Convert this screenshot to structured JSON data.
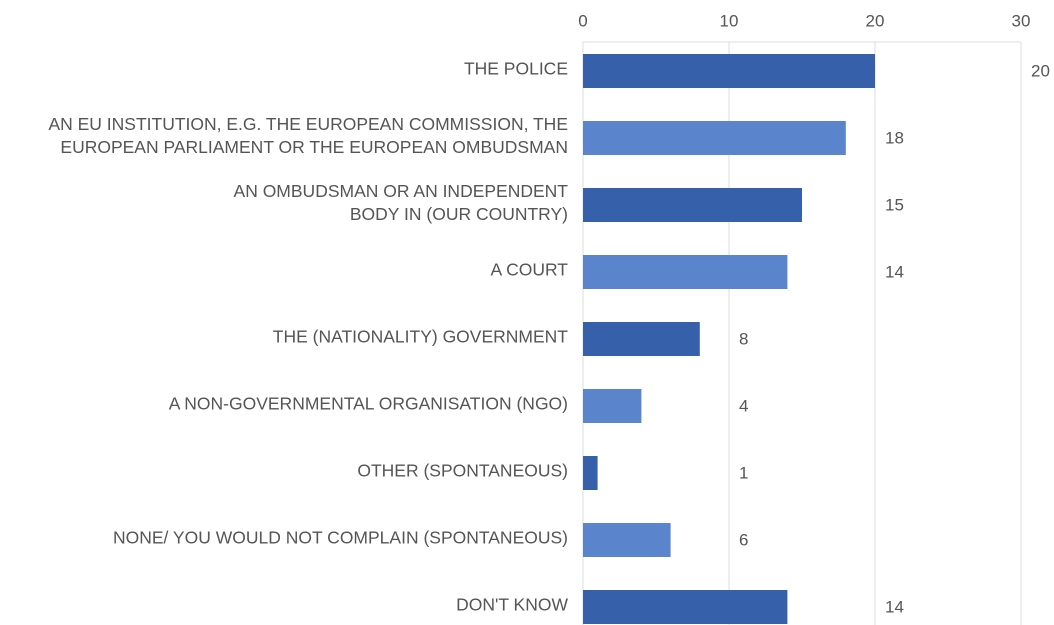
{
  "chart_data": {
    "type": "bar",
    "orientation": "horizontal",
    "categories": [
      "THE POLICE",
      "AN EU INSTITUTION, E.G. THE EUROPEAN COMMISSION, THE\nEUROPEAN PARLIAMENT OR THE EUROPEAN OMBUDSMAN",
      "AN OMBUDSMAN OR AN INDEPENDENT\nBODY IN (OUR COUNTRY)",
      "A COURT",
      "THE (NATIONALITY) GOVERNMENT",
      "A NON-GOVERNMENTAL ORGANISATION (NGO)",
      "OTHER (SPONTANEOUS)",
      "NONE/ YOU WOULD NOT COMPLAIN (SPONTANEOUS)",
      "DON'T KNOW"
    ],
    "values": [
      20,
      18,
      15,
      14,
      8,
      4,
      1,
      6,
      14
    ],
    "colors": [
      "#3760aa",
      "#5a84cc",
      "#3760aa",
      "#5a84cc",
      "#3760aa",
      "#5a84cc",
      "#3760aa",
      "#5a84cc",
      "#3760aa"
    ],
    "xlim": [
      0,
      30
    ],
    "xticks": [
      0,
      10,
      20,
      30
    ],
    "grid": true
  }
}
